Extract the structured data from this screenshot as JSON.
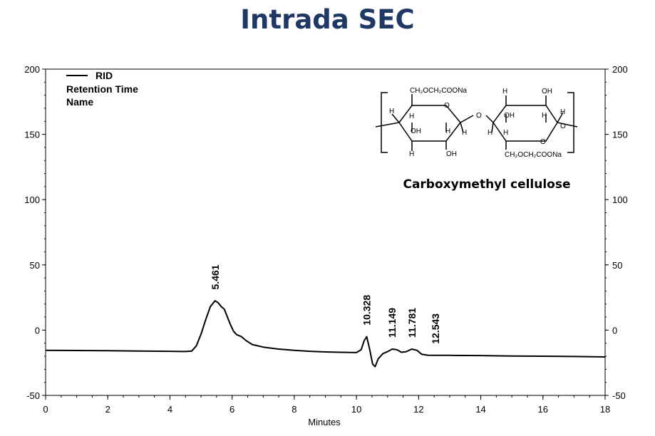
{
  "title": "Intrada SEC",
  "legend": {
    "series_name": "RID",
    "line1": "Retention Time",
    "line2": "Name"
  },
  "inset": {
    "caption": "Carboxymethyl cellulose",
    "labels": {
      "r1_substituent": "CH₂OCH₂COONa",
      "r2_substituent": "CH₂OCH₂COONa",
      "h": "H",
      "oh": "OH",
      "o": "O"
    }
  },
  "chart_data": {
    "type": "line",
    "title": "Intrada SEC",
    "xlabel": "Minutes",
    "ylabel": "",
    "xlim": [
      0,
      18
    ],
    "ylim": [
      -50,
      200
    ],
    "x_ticks": [
      0,
      2,
      4,
      6,
      8,
      10,
      12,
      14,
      16,
      18
    ],
    "y_ticks": [
      -50,
      0,
      50,
      100,
      150,
      200
    ],
    "grid": false,
    "legend_position": "top-left",
    "series": [
      {
        "name": "RID",
        "color": "#000000",
        "points": [
          [
            0,
            -15.5
          ],
          [
            1,
            -15.6
          ],
          [
            2,
            -15.8
          ],
          [
            3,
            -16.0
          ],
          [
            4,
            -16.2
          ],
          [
            4.5,
            -16.4
          ],
          [
            4.7,
            -16.0
          ],
          [
            4.85,
            -12
          ],
          [
            5.0,
            -3
          ],
          [
            5.15,
            8
          ],
          [
            5.3,
            18
          ],
          [
            5.45,
            22.5
          ],
          [
            5.55,
            21
          ],
          [
            5.65,
            18
          ],
          [
            5.75,
            16
          ],
          [
            5.85,
            10
          ],
          [
            5.95,
            4
          ],
          [
            6.05,
            -1
          ],
          [
            6.15,
            -3.5
          ],
          [
            6.3,
            -5
          ],
          [
            6.45,
            -8
          ],
          [
            6.65,
            -11
          ],
          [
            7.0,
            -13
          ],
          [
            7.5,
            -14.5
          ],
          [
            8.0,
            -15.5
          ],
          [
            8.5,
            -16.2
          ],
          [
            9.0,
            -16.7
          ],
          [
            9.5,
            -17.0
          ],
          [
            10.0,
            -17.2
          ],
          [
            10.15,
            -15
          ],
          [
            10.25,
            -8
          ],
          [
            10.33,
            -5
          ],
          [
            10.42,
            -14
          ],
          [
            10.52,
            -26
          ],
          [
            10.6,
            -28
          ],
          [
            10.7,
            -22
          ],
          [
            10.85,
            -18
          ],
          [
            11.0,
            -16.5
          ],
          [
            11.15,
            -14.5
          ],
          [
            11.3,
            -15
          ],
          [
            11.45,
            -17.0
          ],
          [
            11.6,
            -16.5
          ],
          [
            11.78,
            -14.5
          ],
          [
            11.95,
            -15.5
          ],
          [
            12.1,
            -18.5
          ],
          [
            12.3,
            -19.2
          ],
          [
            12.54,
            -19.3
          ],
          [
            13,
            -19.3
          ],
          [
            14,
            -19.5
          ],
          [
            15,
            -19.8
          ],
          [
            16,
            -20.0
          ],
          [
            17,
            -20.2
          ],
          [
            18,
            -20.5
          ]
        ]
      }
    ],
    "annotations": [
      {
        "x": 5.461,
        "text": "5.461"
      },
      {
        "x": 10.328,
        "text": "10.328"
      },
      {
        "x": 11.149,
        "text": "11.149"
      },
      {
        "x": 11.781,
        "text": "11.781"
      },
      {
        "x": 12.543,
        "text": "12.543"
      }
    ]
  }
}
